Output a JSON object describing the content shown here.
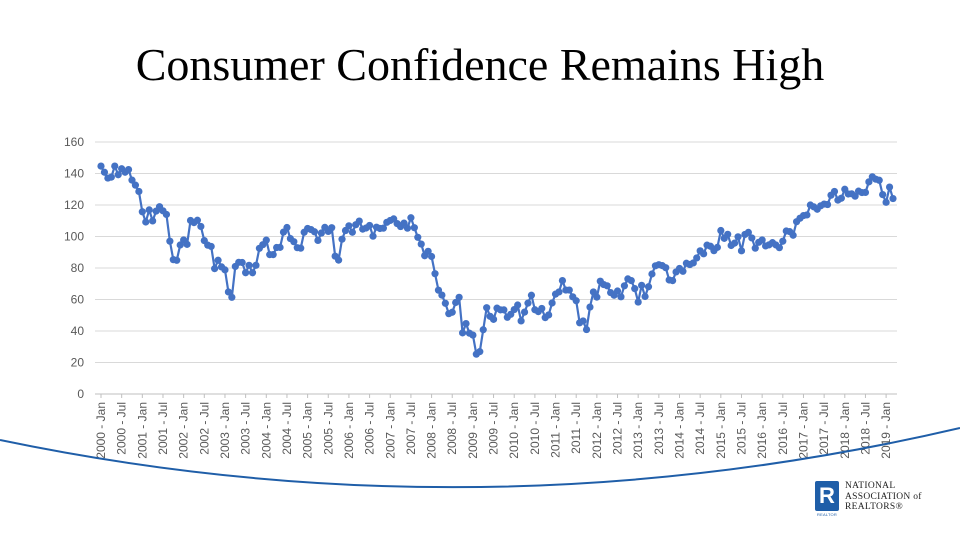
{
  "slide": {
    "title": "Consumer Confidence Remains High"
  },
  "logo": {
    "mark": "R",
    "sub": "REALTOR",
    "lines": [
      "NATIONAL",
      "ASSOCIATION of",
      "REALTORS®"
    ]
  },
  "colors": {
    "series": "#4472c4",
    "grid": "#d9d9d9",
    "arc": "#1f5ea8"
  },
  "chart_data": {
    "type": "line",
    "title": "",
    "xlabel": "",
    "ylabel": "",
    "ylim": [
      0,
      160
    ],
    "yticks": [
      0,
      20,
      40,
      60,
      80,
      100,
      120,
      140,
      160
    ],
    "grid": true,
    "marker": "circle",
    "x_tick_labels": [
      "2000 - Jan",
      "2000 - Jul",
      "2001 - Jan",
      "2001 - Jul",
      "2002 - Jan",
      "2002 - Jul",
      "2003 - Jan",
      "2003 - Jul",
      "2004 - Jan",
      "2004 - Jul",
      "2005 - Jan",
      "2005 - Jul",
      "2006 - Jan",
      "2006 - Jul",
      "2007 - Jan",
      "2007 - Jul",
      "2008 - Jan",
      "2008 - Jul",
      "2009 - Jan",
      "2009 - Jul",
      "2010 - Jan",
      "2010 - Jul",
      "2011 - Jan",
      "2011 - Jul",
      "2012 - Jan",
      "2012 - Jul",
      "2013 - Jan",
      "2013 - Jul",
      "2014 - Jan",
      "2014 - Jul",
      "2015 - Jan",
      "2015 - Jul",
      "2016 - Jan",
      "2016 - Jul",
      "2017 - Jan",
      "2017 - Jul",
      "2018 - Jan",
      "2018 - Jul",
      "2019 - Jan"
    ],
    "series": [
      {
        "start": "2000 - Jan",
        "frequency": "monthly",
        "values": [
          144.7,
          140.8,
          137.1,
          137.7,
          144.7,
          139.2,
          143.0,
          140.8,
          142.5,
          135.8,
          132.6,
          128.6,
          115.7,
          109.2,
          116.9,
          109.9,
          116.1,
          118.9,
          116.3,
          114.0,
          97.0,
          85.3,
          84.9,
          94.6,
          97.8,
          95.0,
          110.2,
          108.8,
          110.3,
          106.4,
          97.4,
          94.5,
          93.7,
          79.6,
          84.9,
          80.7,
          78.8,
          64.8,
          61.4,
          81.0,
          83.6,
          83.5,
          77.0,
          81.7,
          77.0,
          81.7,
          92.5,
          94.8,
          97.7,
          88.5,
          88.5,
          93.0,
          93.1,
          102.8,
          105.7,
          98.7,
          96.7,
          92.9,
          92.6,
          102.7,
          105.1,
          104.4,
          103.0,
          97.5,
          102.2,
          105.8,
          103.2,
          105.6,
          87.5,
          85.0,
          98.3,
          103.8,
          106.8,
          102.7,
          107.5,
          109.8,
          104.7,
          105.4,
          107.0,
          100.2,
          105.9,
          105.1,
          105.3,
          109.0,
          110.2,
          111.2,
          108.2,
          106.3,
          108.5,
          105.3,
          111.9,
          105.6,
          99.5,
          95.2,
          87.8,
          90.6,
          87.3,
          76.4,
          65.9,
          62.8,
          57.6,
          51.0,
          51.9,
          58.1,
          61.4,
          38.8,
          44.7,
          38.6,
          37.4,
          25.3,
          26.9,
          40.8,
          54.8,
          49.3,
          47.4,
          54.5,
          53.4,
          53.4,
          48.7,
          50.6,
          53.6,
          56.5,
          46.4,
          52.0,
          57.7,
          62.7,
          53.5,
          52.3,
          54.3,
          48.5,
          50.2,
          57.8,
          63.4,
          64.8,
          72.0,
          66.0,
          66.0,
          61.7,
          59.2,
          45.2,
          46.4,
          40.9,
          55.2,
          64.8,
          61.5,
          71.6,
          69.5,
          68.7,
          64.4,
          62.7,
          65.4,
          61.7,
          68.7,
          73.1,
          72.0,
          66.9,
          58.4,
          69.0,
          61.9,
          68.1,
          76.2,
          81.4,
          82.1,
          81.5,
          80.2,
          72.4,
          72.0,
          77.5,
          79.7,
          77.9,
          83.0,
          82.2,
          83.2,
          86.4,
          90.9,
          89.0,
          94.5,
          93.8,
          91.0,
          93.1,
          103.8,
          98.8,
          101.4,
          94.3,
          95.8,
          99.8,
          90.9,
          101.3,
          102.6,
          99.1,
          92.6,
          96.3,
          97.8,
          94.0,
          94.7,
          96.1,
          94.6,
          92.9,
          97.0,
          103.5,
          103.1,
          100.8,
          109.4,
          111.6,
          113.3,
          113.7,
          120.0,
          118.8,
          117.3,
          119.5,
          120.6,
          120.3,
          126.2,
          128.6,
          123.1,
          124.3,
          130.0,
          127.0,
          127.1,
          125.6,
          128.8,
          127.9,
          128.0,
          134.7,
          137.9,
          136.4,
          135.7,
          126.6,
          121.7,
          131.4,
          124.1
        ]
      }
    ]
  }
}
